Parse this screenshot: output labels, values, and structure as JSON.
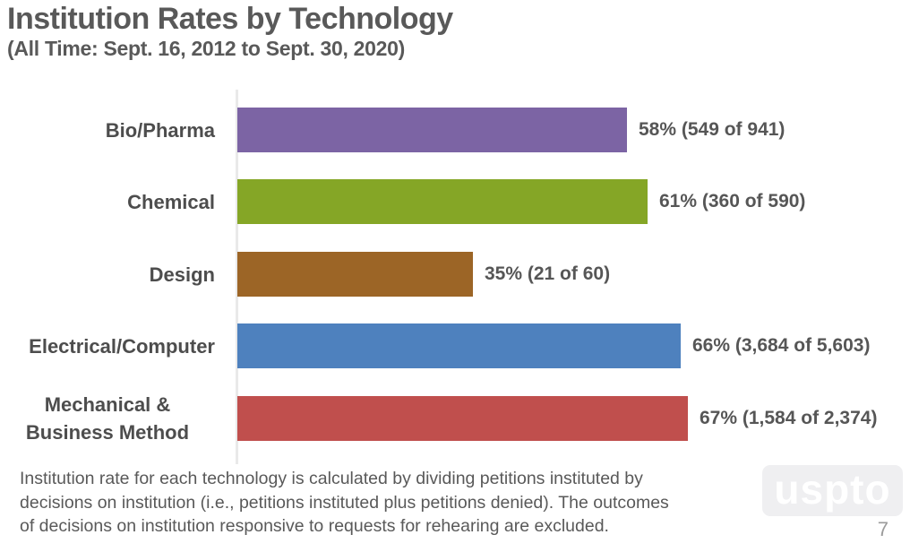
{
  "title": "Institution Rates by Technology",
  "subtitle": "(All Time: Sept. 16, 2012 to Sept. 30, 2020)",
  "chart_data": {
    "type": "bar",
    "orientation": "horizontal",
    "title": "Institution Rates by Technology",
    "subtitle": "(All Time: Sept. 16, 2012 to Sept. 30, 2020)",
    "categories": [
      "Bio/Pharma",
      "Chemical",
      "Design",
      "Electrical/Computer",
      "Mechanical & Business Method"
    ],
    "values": [
      58,
      61,
      35,
      66,
      67
    ],
    "value_labels": [
      "58% (549 of 941)",
      "61% (360 of 590)",
      "35% (21 of 60)",
      "66% (3,684 of 5,603)",
      "67% (1,584 of 2,374)"
    ],
    "petitions_instituted": [
      549,
      360,
      21,
      3684,
      1584
    ],
    "decisions_on_institution": [
      941,
      590,
      60,
      5603,
      2374
    ],
    "bar_colors": [
      "#7c64a4",
      "#85a626",
      "#9c6526",
      "#4e81be",
      "#c04f4d"
    ],
    "xlim": [
      0,
      100
    ],
    "grid": false,
    "legend": "none",
    "axis_color": "#e9e9e9"
  },
  "footnote": {
    "line1": "Institution rate for each technology is calculated by dividing petitions instituted by",
    "line2": "decisions on institution (i.e., petitions instituted plus petitions denied). The outcomes",
    "line3": "of decisions on institution responsive to requests for rehearing are excluded."
  },
  "logo": {
    "text": "uspto",
    "bg": "#efeff1",
    "fg": "#ffffff"
  },
  "page_number": "7",
  "colors": {
    "title_text": "#595959",
    "category_text": "#4d4d4d",
    "value_text": "#565656",
    "footnote_text": "#595959",
    "page_text": "#9b9b9b"
  }
}
